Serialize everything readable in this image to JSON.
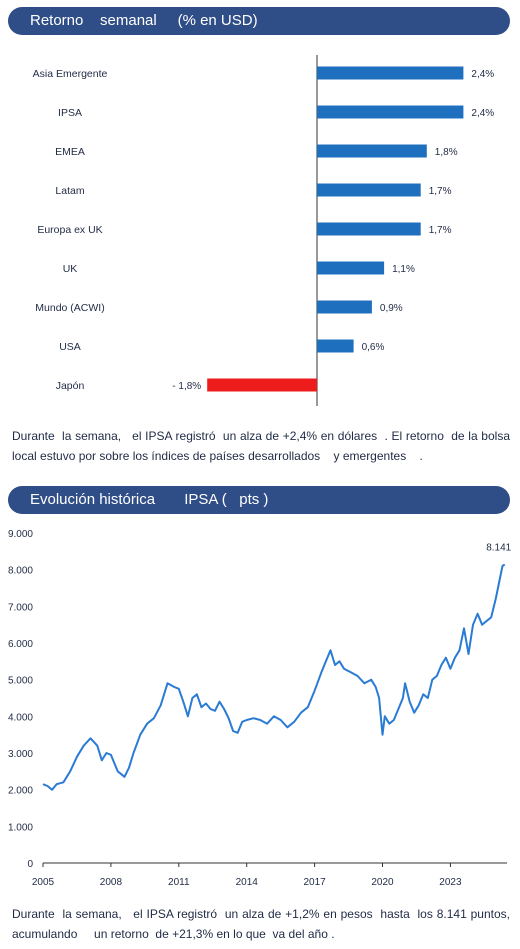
{
  "header1": {
    "title": "Retorno    semanal     (% en USD)"
  },
  "header2": {
    "title": "Evolución histórica       IPSA (   pts )"
  },
  "caption1": "Durante  la semana,   el IPSA registró  un alza de +2,4% en dólares  . El retorno  de la bolsa local estuvo por sobre los índices de países desarrollados    y emergentes    .",
  "caption2": "Durante  la semana,   el IPSA registró  un alza de +1,2% en pesos  hasta  los 8.141 puntos, acumulando     un retorno  de +21,3% en lo que  va del año .",
  "colors": {
    "header": "#2f4d86",
    "positive": "#1f6fbf",
    "negative": "#ee1c1c",
    "line": "#2a7bd4"
  },
  "chart_data": [
    {
      "type": "bar",
      "orientation": "horizontal",
      "categories": [
        "Asia Emergente",
        "IPSA",
        "EMEA",
        "Latam",
        "Europa ex UK",
        "UK",
        "Mundo (ACWI)",
        "USA",
        "Japón"
      ],
      "values": [
        2.4,
        2.4,
        1.8,
        1.7,
        1.7,
        1.1,
        0.9,
        0.6,
        -1.8
      ],
      "labels": [
        "2,4%",
        "2,4%",
        "1,8%",
        "1,7%",
        "1,7%",
        "1,1%",
        "0,9%",
        "0,6%",
        "- 1,8%"
      ],
      "xlim": [
        -1.8,
        2.4
      ]
    },
    {
      "type": "line",
      "ylim": [
        0,
        9000
      ],
      "y_ticks": [
        "0",
        "1.000",
        "2.000",
        "3.000",
        "4.000",
        "5.000",
        "6.000",
        "7.000",
        "8.000",
        "9.000"
      ],
      "y_tick_values": [
        0,
        1000,
        2000,
        3000,
        4000,
        5000,
        6000,
        7000,
        8000,
        9000
      ],
      "x_ticks": [
        "2005",
        "2008",
        "2011",
        "2014",
        "2017",
        "2020",
        "2023"
      ],
      "x_tick_values": [
        2005,
        2008,
        2011,
        2014,
        2017,
        2020,
        2023
      ],
      "xlim": [
        2005,
        2025.5
      ],
      "last_label": "8.141",
      "series": [
        {
          "x": [
            2005.0,
            2005.2,
            2005.4,
            2005.6,
            2005.9,
            2006.2,
            2006.5,
            2006.8,
            2007.1,
            2007.4,
            2007.6,
            2007.8,
            2008.0,
            2008.3,
            2008.6,
            2008.8,
            2009.0,
            2009.3,
            2009.6,
            2009.9,
            2010.2,
            2010.5,
            2010.8,
            2011.0,
            2011.2,
            2011.4,
            2011.6,
            2011.8,
            2012.0,
            2012.2,
            2012.4,
            2012.6,
            2012.8,
            2013.0,
            2013.2,
            2013.4,
            2013.6,
            2013.8,
            2014.0,
            2014.3,
            2014.6,
            2014.9,
            2015.2,
            2015.5,
            2015.8,
            2016.1,
            2016.4,
            2016.7,
            2017.0,
            2017.3,
            2017.5,
            2017.7,
            2017.9,
            2018.1,
            2018.3,
            2018.6,
            2018.9,
            2019.2,
            2019.5,
            2019.7,
            2019.85,
            2020.0,
            2020.1,
            2020.3,
            2020.5,
            2020.7,
            2020.9,
            2021.0,
            2021.2,
            2021.4,
            2021.6,
            2021.8,
            2022.0,
            2022.2,
            2022.4,
            2022.6,
            2022.8,
            2023.0,
            2023.2,
            2023.4,
            2023.6,
            2023.8,
            2024.0,
            2024.2,
            2024.4,
            2024.6,
            2024.8,
            2025.0,
            2025.2,
            2025.3,
            2025.4
          ],
          "y": [
            2150,
            2100,
            2000,
            2150,
            2200,
            2500,
            2900,
            3200,
            3400,
            3200,
            2800,
            3000,
            2950,
            2500,
            2350,
            2600,
            3000,
            3500,
            3800,
            3950,
            4300,
            4900,
            4800,
            4750,
            4400,
            4000,
            4500,
            4600,
            4250,
            4350,
            4200,
            4150,
            4400,
            4200,
            3950,
            3600,
            3550,
            3850,
            3900,
            3950,
            3900,
            3800,
            4000,
            3900,
            3700,
            3850,
            4100,
            4250,
            4700,
            5200,
            5500,
            5800,
            5400,
            5500,
            5300,
            5200,
            5100,
            4900,
            5000,
            4800,
            4500,
            3500,
            4000,
            3800,
            3900,
            4200,
            4500,
            4900,
            4400,
            4100,
            4300,
            4600,
            4500,
            5000,
            5100,
            5400,
            5600,
            5300,
            5600,
            5800,
            6400,
            5700,
            6500,
            6800,
            6500,
            6600,
            6700,
            7200,
            7800,
            8100,
            8141
          ]
        }
      ]
    }
  ]
}
